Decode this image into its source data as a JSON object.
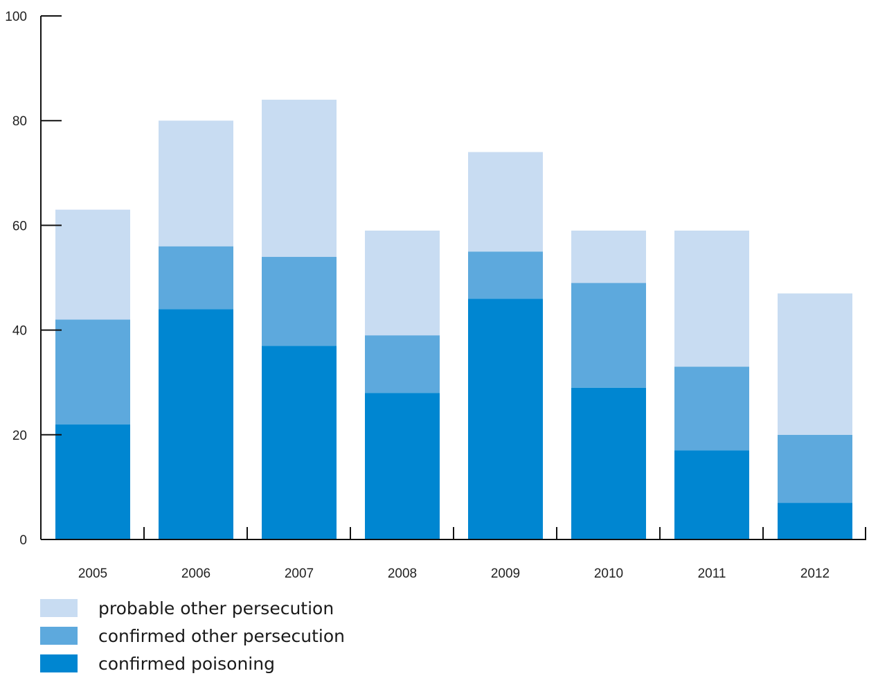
{
  "chart_data": {
    "type": "bar",
    "stacked": true,
    "categories": [
      "2005",
      "2006",
      "2007",
      "2008",
      "2009",
      "2010",
      "2011",
      "2012"
    ],
    "series": [
      {
        "name": "confirmed poisoning",
        "color": "#0086d1",
        "values": [
          22,
          44,
          37,
          28,
          46,
          29,
          17,
          7
        ]
      },
      {
        "name": "confirmed other persecution",
        "color": "#5da9dd",
        "values": [
          20,
          12,
          17,
          11,
          9,
          20,
          16,
          13
        ]
      },
      {
        "name": "probable other persecution",
        "color": "#c8dcf2",
        "values": [
          21,
          24,
          30,
          20,
          19,
          10,
          26,
          27
        ]
      }
    ],
    "ylim": [
      0,
      100
    ],
    "yticks": [
      "0",
      "20",
      "40",
      "60",
      "80",
      "100"
    ],
    "title": "",
    "xlabel": "",
    "ylabel": "",
    "grid": false,
    "legend_position": "bottom-left",
    "legend_order": [
      "probable other persecution",
      "confirmed other persecution",
      "confirmed poisoning"
    ]
  }
}
